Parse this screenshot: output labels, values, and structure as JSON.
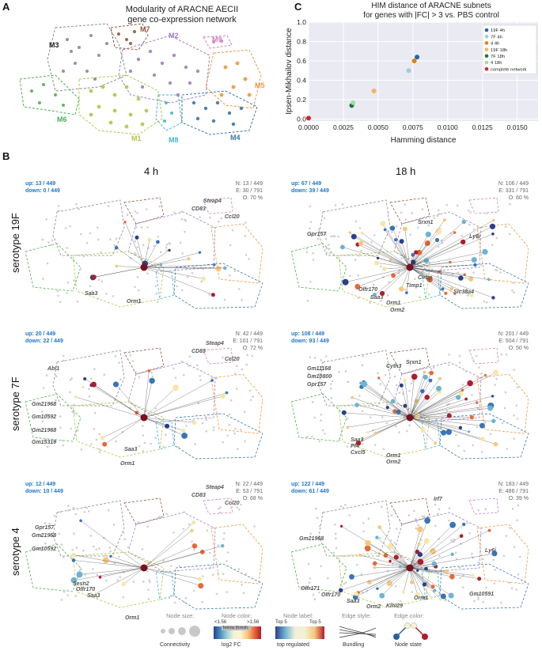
{
  "panel_a": {
    "letter": "A",
    "title_line1": "Modularity of ARACNE AECII",
    "title_line2": "gene co-expression network",
    "modules": [
      {
        "label": "M3",
        "color": "#7a7a7a"
      },
      {
        "label": "M7",
        "color": "#8b5a3c"
      },
      {
        "label": "M2",
        "color": "#9b7fc6"
      },
      {
        "label": "M9",
        "color": "#d07fbf"
      },
      {
        "label": "M5",
        "color": "#f0953a"
      },
      {
        "label": "M6",
        "color": "#4caf50"
      },
      {
        "label": "M1",
        "color": "#b5c44a"
      },
      {
        "label": "M8",
        "color": "#3fb8c8"
      },
      {
        "label": "M4",
        "color": "#3b76a8"
      }
    ]
  },
  "panel_c": {
    "letter": "C",
    "chart_data": {
      "type": "scatter",
      "title": "HIM distance of ARACNE subnets\nfor genes with |FC| > 3 vs. PBS control",
      "xlabel": "Hamming distance",
      "ylabel": "Ipsen-Mikhailov distance",
      "xlim": [
        0,
        0.0165
      ],
      "ylim": [
        -0.02,
        1.0
      ],
      "xticks": [
        "0.0000",
        "0.0025",
        "0.0050",
        "0.0075",
        "0.0100",
        "0.0125",
        "0.0150"
      ],
      "yticks": [
        "0.0",
        "0.2",
        "0.4",
        "0.6",
        "0.8",
        "1.0"
      ],
      "series": [
        {
          "name": "19F   4h",
          "color": "#2166ac",
          "x": 0.0078,
          "y": 0.64
        },
        {
          "name": "7F    4h",
          "color": "#9ecae1",
          "x": 0.0072,
          "y": 0.5
        },
        {
          "name": "4      4h",
          "color": "#e08214",
          "x": 0.0076,
          "y": 0.6
        },
        {
          "name": "19F   18h",
          "color": "#fdae61",
          "x": 0.0047,
          "y": 0.29
        },
        {
          "name": "7F    18h",
          "color": "#1b7837",
          "x": 0.0031,
          "y": 0.14
        },
        {
          "name": "4      18h",
          "color": "#a6dba0",
          "x": 0.0032,
          "y": 0.17
        },
        {
          "name": "complete network",
          "color": "#d62728",
          "x": 0.0,
          "y": 0.01
        }
      ]
    }
  },
  "panel_b": {
    "letter": "B",
    "col_4h": "4 h",
    "col_18h": "18 h",
    "rows": [
      {
        "label": "serotype 19F",
        "h4": {
          "up": "up: 13 / 449",
          "down": "down: 0 / 449",
          "n": "N: 13 / 449",
          "e": "E: 30 / 791",
          "o": "O: 70 %",
          "genes": [
            "Steap4",
            "CD83",
            "Ccl20",
            "Saa3",
            "Orm1"
          ]
        },
        "h18": {
          "up": "up: 67 / 449",
          "down": "down: 39 / 449",
          "n": "N: 106 / 449",
          "e": "E: 331 / 791",
          "o": "O: 60 %",
          "genes": [
            "Gpr157",
            "Srxn1",
            "Ly6i",
            "Olfr170",
            "Saa3",
            "Cirbp",
            "Timp1",
            "Slc38a4",
            "Orm1",
            "Orm2"
          ]
        }
      },
      {
        "label": "serotype 7F",
        "h4": {
          "up": "up: 20 / 449",
          "down": "down: 22 / 449",
          "n": "N: 42 / 449",
          "e": "E: 101 / 791",
          "o": "O: 72 %",
          "genes": [
            "Steap4",
            "CD83",
            "Ccl20",
            "Abl1",
            "Gm21968",
            "Gm10592",
            "Gm21968",
            "Gm15319",
            "Saa3",
            "Orm1"
          ]
        },
        "h18": {
          "up": "up: 108 / 449",
          "down": "down: 93 / 449",
          "n": "N: 201 / 449",
          "e": "E: 504 / 791",
          "o": "O: 50 %",
          "genes": [
            "Gm11168",
            "Gm10800",
            "Gpr157",
            "Cyth3",
            "Srxn1",
            "Saa3",
            "Pf4",
            "Cxcl5",
            "Orm1",
            "Orm2"
          ]
        }
      },
      {
        "label": "serotype 4",
        "h4": {
          "up": "up: 12 / 449",
          "down": "down: 10 / 449",
          "n": "N: 22 / 449",
          "e": "E: 53 / 791",
          "o": "O: 68 %",
          "genes": [
            "Steap4",
            "CD83",
            "Ccl20",
            "Gpr157",
            "Gm21968",
            "Gm10592",
            "Sesn2",
            "Olfr170",
            "Saa3",
            "Orm1"
          ]
        },
        "h18": {
          "up": "up: 122 / 449",
          "down": "down: 61 / 449",
          "n": "N: 183 / 449",
          "e": "E: 486 / 791",
          "o": "O: 39 %",
          "genes": [
            "Irf7",
            "Gm21968",
            "Ly6i",
            "Olfr171",
            "Olfr170",
            "Saa3",
            "Orm2",
            "Klhl29",
            "Orm1",
            "Gm10591"
          ]
        }
      }
    ]
  },
  "legend": {
    "node_size_title": "Node size:",
    "node_size_sub": "Connectivity",
    "node_color_title": "Node color:",
    "node_color_low": "<1.56",
    "node_color_high": ">1.56",
    "node_color_mid": "below thresh.",
    "node_color_sub": "log2 FC",
    "node_label_title": "Node label:",
    "node_label_top1": "Top 5",
    "node_label_top2": "Top 5",
    "node_label_sub": "top regulated",
    "edge_style_title": "Edge style:",
    "edge_style_sub": "Bundling",
    "edge_color_title": "Edge color:",
    "edge_color_sub": "Node state"
  }
}
